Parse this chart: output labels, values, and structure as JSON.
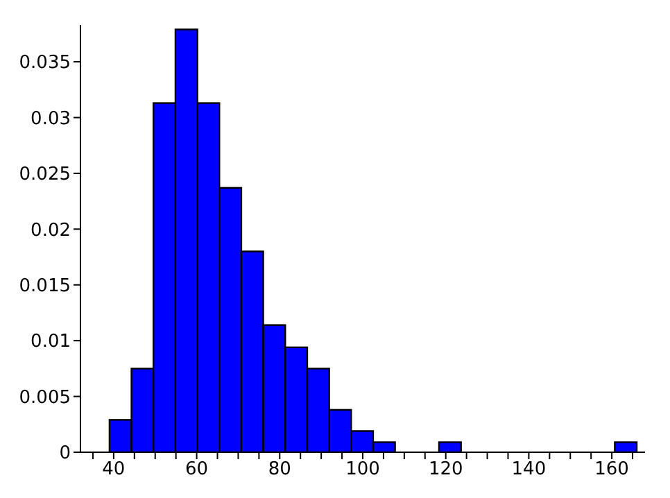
{
  "chart_data": {
    "type": "histogram",
    "color": "#0000ff",
    "bins": [
      39,
      44.29,
      49.58,
      54.88,
      60.17,
      65.46,
      70.75,
      76.04,
      81.33,
      86.63,
      91.92,
      97.21,
      102.5,
      107.79,
      113.08,
      118.38,
      123.67,
      128.96,
      134.25,
      139.54,
      144.83,
      150.13,
      155.42,
      160.71,
      166
    ],
    "values": [
      0.0029,
      0.0075,
      0.0313,
      0.0379,
      0.0313,
      0.0237,
      0.018,
      0.0114,
      0.0094,
      0.0075,
      0.0038,
      0.0019,
      0.0009,
      0,
      0,
      0.0009,
      0,
      0,
      0,
      0,
      0,
      0,
      0,
      0.0009
    ],
    "xlim": [
      32,
      168
    ],
    "ylim": [
      0,
      0.0383
    ],
    "xticks": [
      {
        "value": 35,
        "label": null
      },
      40,
      {
        "value": 45,
        "label": null
      },
      {
        "value": 50,
        "label": null
      },
      {
        "value": 55,
        "label": null
      },
      60,
      {
        "value": 65,
        "label": null
      },
      {
        "value": 70,
        "label": null
      },
      {
        "value": 75,
        "label": null
      },
      80,
      {
        "value": 85,
        "label": null
      },
      {
        "value": 90,
        "label": null
      },
      {
        "value": 95,
        "label": null
      },
      100,
      {
        "value": 105,
        "label": null
      },
      {
        "value": 110,
        "label": null
      },
      {
        "value": 115,
        "label": null
      },
      120,
      {
        "value": 125,
        "label": null
      },
      {
        "value": 130,
        "label": null
      },
      {
        "value": 135,
        "label": null
      },
      140,
      {
        "value": 145,
        "label": null
      },
      {
        "value": 150,
        "label": null
      },
      {
        "value": 155,
        "label": null
      },
      160,
      {
        "value": 165,
        "label": null
      }
    ],
    "yticks": [
      0,
      0.005,
      0.01,
      0.015,
      0.02,
      0.025,
      0.03,
      0.035
    ],
    "grid": false,
    "legend": false
  }
}
